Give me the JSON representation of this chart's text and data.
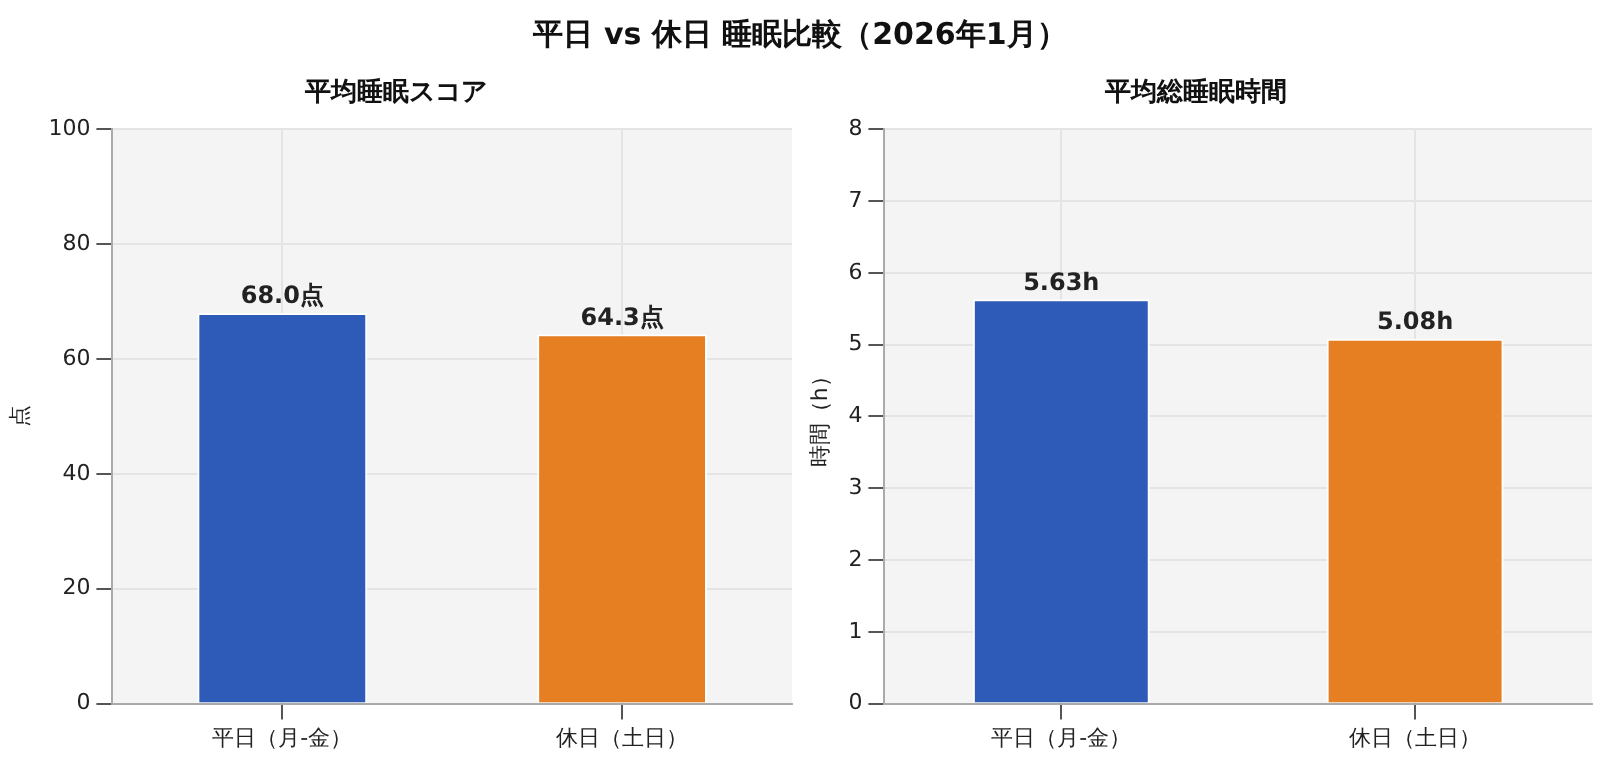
{
  "chart_data": [
    {
      "type": "other",
      "title": "平日 vs 休日 睡眠比較（2026年1月）"
    },
    {
      "type": "bar",
      "title": "平均睡眠スコア",
      "ylabel": "点",
      "categories": [
        "平日（月-金）",
        "休日（土日）"
      ],
      "values": [
        68.0,
        64.3
      ],
      "colors": [
        "#2e5bb8",
        "#e67e22"
      ],
      "value_labels": [
        "68.0点",
        "64.3点"
      ],
      "ylim": [
        0,
        100
      ],
      "yticks": [
        0,
        20,
        40,
        60,
        80,
        100
      ],
      "grid": true
    },
    {
      "type": "bar",
      "title": "平均総睡眠時間",
      "ylabel": "時間（h）",
      "categories": [
        "平日（月-金）",
        "休日（土日）"
      ],
      "values": [
        5.63,
        5.08
      ],
      "colors": [
        "#2e5bb8",
        "#e67e22"
      ],
      "value_labels": [
        "5.63h",
        "5.08h"
      ],
      "ylim": [
        0,
        8
      ],
      "yticks": [
        0,
        1,
        2,
        3,
        4,
        5,
        6,
        7,
        8
      ],
      "grid": true
    }
  ]
}
